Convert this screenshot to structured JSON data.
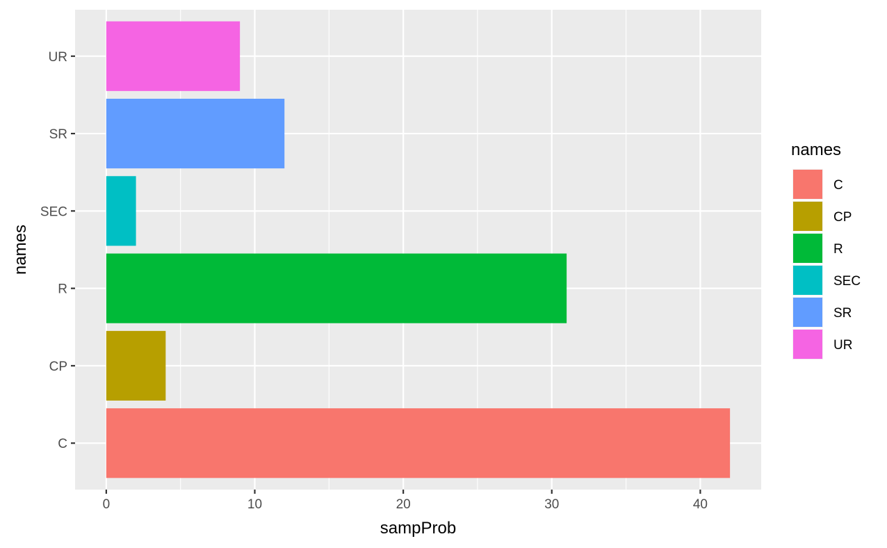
{
  "chart_data": {
    "type": "bar",
    "orientation": "horizontal",
    "categories": [
      "C",
      "CP",
      "R",
      "SEC",
      "SR",
      "UR"
    ],
    "values": [
      42,
      4,
      31,
      2,
      12,
      9
    ],
    "colors": [
      "#F8766D",
      "#B79F00",
      "#00BA38",
      "#00BFC4",
      "#619CFF",
      "#F564E3"
    ],
    "xlabel": "sampProb",
    "ylabel": "names",
    "xlim": [
      -2.1,
      44.1
    ],
    "x_ticks": [
      "0",
      "10",
      "20",
      "30",
      "40"
    ],
    "grid": true,
    "legend": {
      "title": "names",
      "placement": "right",
      "entries": [
        "C",
        "CP",
        "R",
        "SEC",
        "SR",
        "UR"
      ]
    }
  }
}
